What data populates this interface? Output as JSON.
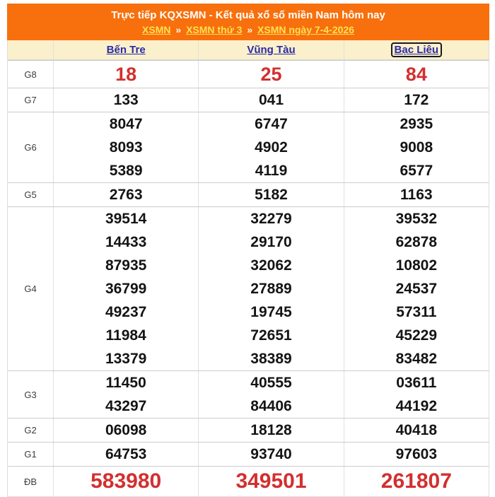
{
  "banner": {
    "title": "Trực tiếp KQXSMN - Kết quả xổ số miền Nam hôm nay",
    "separator": "»",
    "breadcrumb": [
      "XSMN",
      "XSMN thứ 3",
      "XSMN ngày 7-4-2026"
    ]
  },
  "table": {
    "provinces": [
      "Bến Tre",
      "Vũng Tàu",
      "Bạc Liêu"
    ],
    "focused_province": "Bạc Liêu",
    "rows": [
      {
        "label": "G8",
        "values": [
          [
            "18"
          ],
          [
            "25"
          ],
          [
            "84"
          ]
        ]
      },
      {
        "label": "G7",
        "values": [
          [
            "133"
          ],
          [
            "041"
          ],
          [
            "172"
          ]
        ]
      },
      {
        "label": "G6",
        "values": [
          [
            "8047",
            "8093",
            "5389"
          ],
          [
            "6747",
            "4902",
            "4119"
          ],
          [
            "2935",
            "9008",
            "6577"
          ]
        ]
      },
      {
        "label": "G5",
        "values": [
          [
            "2763"
          ],
          [
            "5182"
          ],
          [
            "1163"
          ]
        ]
      },
      {
        "label": "G4",
        "values": [
          [
            "39514",
            "14433",
            "87935",
            "36799",
            "49237",
            "11984",
            "13379"
          ],
          [
            "32279",
            "29170",
            "32062",
            "27889",
            "19745",
            "72651",
            "38389"
          ],
          [
            "39532",
            "62878",
            "10802",
            "24537",
            "57311",
            "45229",
            "83482"
          ]
        ]
      },
      {
        "label": "G3",
        "values": [
          [
            "11450",
            "43297"
          ],
          [
            "40555",
            "84406"
          ],
          [
            "03611",
            "44192"
          ]
        ]
      },
      {
        "label": "G2",
        "values": [
          [
            "06098"
          ],
          [
            "18128"
          ],
          [
            "40418"
          ]
        ]
      },
      {
        "label": "G1",
        "values": [
          [
            "64753"
          ],
          [
            "93740"
          ],
          [
            "97603"
          ]
        ]
      },
      {
        "label": "ĐB",
        "values": [
          [
            "583980"
          ],
          [
            "349501"
          ],
          [
            "261807"
          ]
        ]
      }
    ]
  },
  "colors": {
    "banner_background": "#f7700d",
    "banner_title": "#ffffff",
    "breadcrumb_link": "#ffe153",
    "header_row_background": "#fbf0cc",
    "province_link": "#2a2aa5",
    "highlight_red": "#d32f2f",
    "number_black": "#141414"
  }
}
